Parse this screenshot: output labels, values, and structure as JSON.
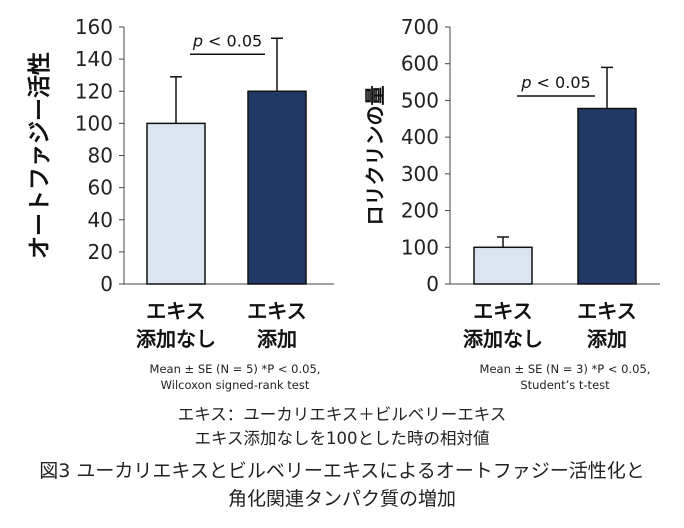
{
  "chart_data": [
    {
      "type": "bar",
      "ylabel": "オートファジー活性",
      "ylim": [
        0,
        160
      ],
      "yticks": [
        0,
        20,
        40,
        60,
        80,
        100,
        120,
        140,
        160
      ],
      "categories": [
        {
          "line1": "エキス",
          "line2": "添加なし"
        },
        {
          "line1": "エキス",
          "line2": "添加"
        }
      ],
      "values": [
        100,
        120
      ],
      "errors": [
        29,
        33
      ],
      "colors": [
        "#dbe5f1",
        "#1f3864"
      ],
      "significance": {
        "text": "p < 0.05",
        "y": 143
      },
      "note_line1": "Mean ± SE (N = 5)  *P < 0.05,",
      "note_line2": "Wilcoxon signed-rank test"
    },
    {
      "type": "bar",
      "ylabel": "ロリクリンの量",
      "ylim": [
        0,
        700
      ],
      "yticks": [
        0,
        100,
        200,
        300,
        400,
        500,
        600,
        700
      ],
      "categories": [
        {
          "line1": "エキス",
          "line2": "添加なし"
        },
        {
          "line1": "エキス",
          "line2": "添加"
        }
      ],
      "values": [
        100,
        478
      ],
      "errors": [
        28,
        112
      ],
      "colors": [
        "#dbe5f1",
        "#1f3864"
      ],
      "significance": {
        "text": "p < 0.05",
        "y": 512
      },
      "note_line1": "Mean ± SE (N = 3)  *P < 0.05,",
      "note_line2": "Student’s t-test"
    }
  ],
  "caption_line1": "エキス：ユーカリエキス＋ビルベリーエキス",
  "caption_line2": "エキス添加なしを100とした時の相対値",
  "figure_title_line1": "図3  ユーカリエキスとビルベリーエキスによるオートファジー活性化と",
  "figure_title_line2": "角化関連タンパク質の増加"
}
